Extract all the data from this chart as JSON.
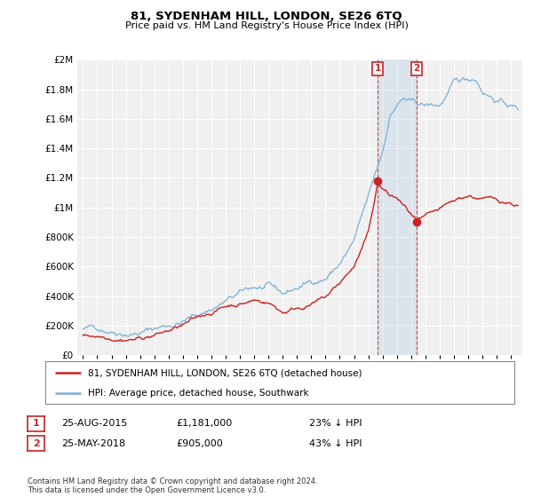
{
  "title": "81, SYDENHAM HILL, LONDON, SE26 6TQ",
  "subtitle": "Price paid vs. HM Land Registry's House Price Index (HPI)",
  "legend_line1": "81, SYDENHAM HILL, LONDON, SE26 6TQ (detached house)",
  "legend_line2": "HPI: Average price, detached house, Southwark",
  "sale1_date": "25-AUG-2015",
  "sale1_price": "£1,181,000",
  "sale1_hpi": "23% ↓ HPI",
  "sale2_date": "25-MAY-2018",
  "sale2_price": "£905,000",
  "sale2_hpi": "43% ↓ HPI",
  "footer": "Contains HM Land Registry data © Crown copyright and database right 2024.\nThis data is licensed under the Open Government Licence v3.0.",
  "hpi_color": "#7bafd4",
  "price_color": "#cc2222",
  "sale1_year": 2015.65,
  "sale1_price_val": 1181000,
  "sale2_year": 2018.4,
  "sale2_price_val": 905000,
  "ylim_max": 2000000,
  "background_color": "#ffffff",
  "plot_bg_color": "#f0f0f0"
}
